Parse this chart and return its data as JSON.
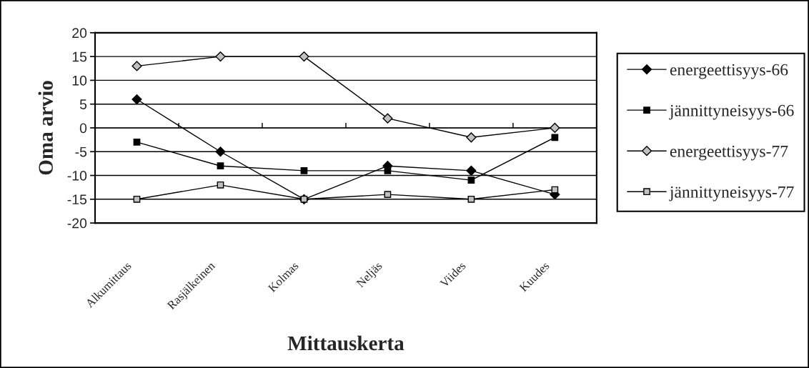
{
  "chart_data": {
    "type": "line",
    "xlabel": "Mittauskerta",
    "ylabel": "Oma arvio",
    "categories": [
      "Alkumittaus",
      "Rasjälkeinen",
      "Kolmas",
      "Neljäs",
      "Viides",
      "Kuudes"
    ],
    "series": [
      {
        "name": "energeettisyys-66",
        "color": "#000000",
        "marker": "diamond",
        "values": [
          6,
          -5,
          -15,
          -8,
          -9,
          -14
        ]
      },
      {
        "name": "jännittyneisyys-66",
        "color": "#000000",
        "marker": "square",
        "values": [
          -3,
          -8,
          -9,
          -9,
          -11,
          -2
        ]
      },
      {
        "name": "energeettisyys-77",
        "color": "#c0c0c0",
        "marker": "diamond",
        "values": [
          13,
          15,
          15,
          2,
          -2,
          0
        ]
      },
      {
        "name": "jännittyneisyys-77",
        "color": "#c0c0c0",
        "marker": "square",
        "values": [
          -15,
          -12,
          -15,
          -14,
          -15,
          -13
        ]
      }
    ],
    "ylim": [
      -20,
      20
    ],
    "yticks": [
      -20,
      -15,
      -10,
      -5,
      0,
      5,
      10,
      15,
      20
    ],
    "grid": "y",
    "legend": "right",
    "line_style": "solid"
  }
}
